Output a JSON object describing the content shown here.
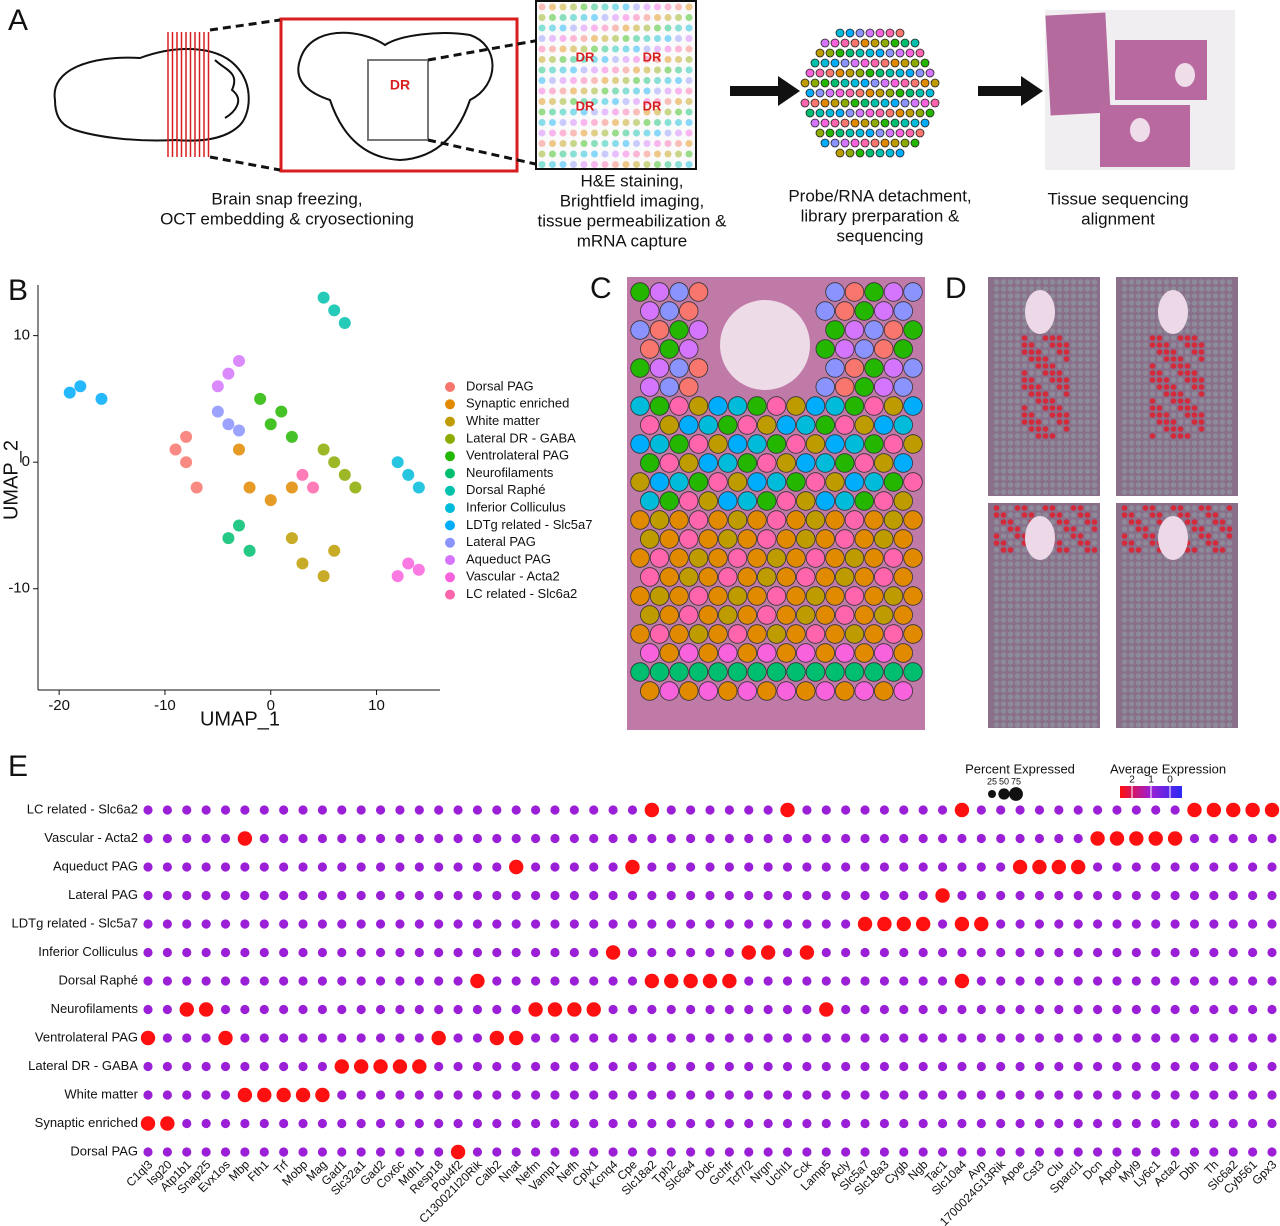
{
  "panel_labels": [
    "A",
    "B",
    "C",
    "D",
    "E"
  ],
  "panel_a": {
    "region_label": "DR",
    "steps": [
      [
        "Brain snap freezing,",
        "OCT embedding & cryosectioning"
      ],
      [
        "H&E staining,",
        "Brightfield imaging,",
        "tissue permeabilization &",
        "mRNA capture"
      ],
      [
        "Probe/RNA detachment,",
        "library prerparation &",
        "sequencing"
      ],
      [
        "Tissue sequencing",
        "alignment"
      ]
    ]
  },
  "chart_data": [
    {
      "type": "scatter",
      "xlabel": "UMAP_1",
      "ylabel": "UMAP_2",
      "xlim": [
        -22,
        16
      ],
      "ylim": [
        -18,
        14
      ],
      "xticks": [
        -20,
        -10,
        0,
        10
      ],
      "yticks": [
        -10,
        0,
        10
      ],
      "series": [
        {
          "name": "Dorsal PAG",
          "color": "#F8766D",
          "x": [
            -8,
            -9,
            -7,
            -8
          ],
          "y": [
            0,
            1,
            -2,
            2
          ]
        },
        {
          "name": "Synaptic enriched",
          "color": "#E18A00",
          "x": [
            -2,
            0,
            2,
            -3
          ],
          "y": [
            -2,
            -3,
            -2,
            1
          ]
        },
        {
          "name": "White matter",
          "color": "#BE9C00",
          "x": [
            3,
            5,
            2,
            6
          ],
          "y": [
            -8,
            -9,
            -6,
            -7
          ]
        },
        {
          "name": "Lateral DR - GABA",
          "color": "#8CAB00",
          "x": [
            6,
            7,
            5,
            8
          ],
          "y": [
            0,
            -1,
            1,
            -2
          ]
        },
        {
          "name": "Ventrolateral PAG",
          "color": "#24B700",
          "x": [
            0,
            1,
            2,
            -1
          ],
          "y": [
            3,
            4,
            2,
            5
          ]
        },
        {
          "name": "Neurofilaments",
          "color": "#00BE70",
          "x": [
            -3,
            -2,
            -4
          ],
          "y": [
            -5,
            -7,
            -6
          ]
        },
        {
          "name": "Dorsal Raphé",
          "color": "#00C1AB",
          "x": [
            6,
            7,
            5
          ],
          "y": [
            12,
            11,
            13
          ]
        },
        {
          "name": "Inferior Colliculus",
          "color": "#00BBDA",
          "x": [
            13,
            14,
            12
          ],
          "y": [
            -1,
            -2,
            0
          ]
        },
        {
          "name": "LDTg related - Slc5a7",
          "color": "#00ACFC",
          "x": [
            -18,
            -16,
            -19
          ],
          "y": [
            6,
            5,
            5.5
          ]
        },
        {
          "name": "Lateral PAG",
          "color": "#8B93FF",
          "x": [
            -4,
            -5,
            -3
          ],
          "y": [
            3,
            4,
            2.5
          ]
        },
        {
          "name": "Aqueduct PAG",
          "color": "#D575FE",
          "x": [
            -3,
            -5,
            -4
          ],
          "y": [
            8,
            6,
            7
          ]
        },
        {
          "name": "Vascular - Acta2",
          "color": "#F962DD",
          "x": [
            13,
            12,
            14
          ],
          "y": [
            -8,
            -9,
            -8.5
          ]
        },
        {
          "name": "LC related - Slc6a2",
          "color": "#FF65AC",
          "x": [
            3,
            4
          ],
          "y": [
            -1,
            -2
          ]
        }
      ]
    },
    {
      "type": "dotplot",
      "categories": [
        "C1ql3",
        "Isg20",
        "Atp1b1",
        "Snap25",
        "Evx1os",
        "Mbp",
        "Fth1",
        "Trf",
        "Mobp",
        "Mag",
        "Gad1",
        "Slc32a1",
        "Gad2",
        "Cox6c",
        "Mdh1",
        "Resp18",
        "Pou4f2",
        "C130021I20Rik",
        "Calb2",
        "Nnat",
        "Nefm",
        "Vamp1",
        "Nefh",
        "Cplx1",
        "Kcnq4",
        "Cpe",
        "Slc18a2",
        "Tph2",
        "Slc6a4",
        "Ddc",
        "Gchfr",
        "Tcf7l2",
        "Nrgn",
        "Uchl1",
        "Cck",
        "Lamp5",
        "Acly",
        "Slc5a7",
        "Slc18a3",
        "Cygb",
        "Ngb",
        "Tac1",
        "Slc10a4",
        "Avp",
        "1700024G13Rik",
        "Apoe",
        "Cst3",
        "Clu",
        "Sparcl1",
        "Dcn",
        "Apod",
        "Myl9",
        "Ly6c1",
        "Acta2",
        "Dbh",
        "Th",
        "Slc6a2",
        "Cyb561",
        "Gpx3"
      ],
      "colors": {
        "high": "#ff1010",
        "mid": "#9a1fd6",
        "low": "#2a2af5"
      },
      "size_legend": {
        "title": "Percent Expressed",
        "ticks": [
          25,
          50,
          75
        ]
      },
      "color_legend": {
        "title": "Average Expression",
        "ticks": [
          2,
          1,
          0
        ]
      },
      "series": [
        {
          "name": "LC related - Slc6a2",
          "values": [
            1,
            1,
            1,
            1,
            1,
            1,
            1,
            1,
            1,
            1,
            1,
            1,
            1,
            1,
            1,
            1,
            1,
            1,
            1,
            1,
            1,
            1,
            1,
            1,
            1,
            1,
            2,
            1,
            1,
            1,
            1,
            1,
            1,
            2,
            1,
            1,
            1,
            1,
            1,
            1,
            1,
            1,
            2,
            1,
            1,
            1,
            1,
            1,
            1,
            1,
            1,
            1,
            1,
            1,
            2,
            2,
            2,
            2,
            2
          ]
        },
        {
          "name": "Vascular - Acta2",
          "values": [
            1,
            1,
            1,
            1,
            1,
            2,
            1,
            1,
            1,
            1,
            1,
            1,
            1,
            1,
            1,
            1,
            1,
            1,
            1,
            1,
            1,
            1,
            1,
            1,
            1,
            1,
            1,
            1,
            1,
            1,
            1,
            1,
            1,
            1,
            1,
            1,
            1,
            1,
            1,
            1,
            1,
            1,
            1,
            1,
            1,
            1,
            1,
            1,
            1,
            2,
            2,
            2,
            2,
            2,
            1,
            1,
            1,
            1,
            1
          ]
        },
        {
          "name": "Aqueduct PAG",
          "values": [
            1,
            1,
            1,
            1,
            1,
            1,
            1,
            1,
            1,
            1,
            1,
            1,
            1,
            1,
            1,
            1,
            1,
            1,
            1,
            2,
            1,
            1,
            1,
            1,
            1,
            2,
            1,
            1,
            1,
            1,
            1,
            1,
            1,
            1,
            1,
            1,
            1,
            1,
            1,
            1,
            1,
            1,
            1,
            1,
            1,
            2,
            2,
            2,
            2,
            1,
            1,
            1,
            1,
            1,
            1,
            1,
            1,
            1,
            1
          ]
        },
        {
          "name": "Lateral PAG",
          "values": [
            1,
            1,
            1,
            1,
            1,
            1,
            1,
            1,
            1,
            1,
            1,
            1,
            1,
            1,
            1,
            1,
            1,
            1,
            1,
            1,
            1,
            1,
            1,
            1,
            1,
            1,
            1,
            1,
            1,
            1,
            1,
            1,
            1,
            1,
            1,
            1,
            1,
            1,
            1,
            1,
            1,
            2,
            1,
            1,
            1,
            1,
            1,
            1,
            1,
            1,
            1,
            1,
            1,
            1,
            1,
            1,
            1,
            1,
            1
          ]
        },
        {
          "name": "LDTg related - Slc5a7",
          "values": [
            1,
            1,
            1,
            1,
            1,
            1,
            1,
            1,
            1,
            1,
            1,
            1,
            1,
            1,
            1,
            1,
            1,
            1,
            1,
            1,
            1,
            1,
            1,
            1,
            1,
            1,
            1,
            1,
            1,
            1,
            1,
            1,
            1,
            1,
            1,
            1,
            1,
            2,
            2,
            2,
            2,
            1,
            2,
            2,
            1,
            1,
            1,
            1,
            1,
            1,
            1,
            1,
            1,
            1,
            1,
            1,
            1,
            1,
            1
          ]
        },
        {
          "name": "Inferior Colliculus",
          "values": [
            1,
            1,
            1,
            1,
            1,
            1,
            1,
            1,
            1,
            1,
            1,
            1,
            1,
            1,
            1,
            1,
            1,
            1,
            1,
            1,
            1,
            1,
            1,
            1,
            2,
            1,
            1,
            1,
            1,
            1,
            1,
            2,
            2,
            1,
            2,
            1,
            1,
            1,
            1,
            1,
            1,
            1,
            1,
            1,
            1,
            1,
            1,
            1,
            1,
            1,
            1,
            1,
            1,
            1,
            1,
            1,
            1,
            1,
            1
          ]
        },
        {
          "name": "Dorsal Raphé",
          "values": [
            1,
            1,
            1,
            1,
            1,
            1,
            1,
            1,
            1,
            1,
            1,
            1,
            1,
            1,
            1,
            1,
            1,
            2,
            1,
            1,
            1,
            1,
            1,
            1,
            1,
            1,
            2,
            2,
            2,
            2,
            2,
            1,
            1,
            1,
            1,
            1,
            1,
            1,
            1,
            1,
            1,
            1,
            2,
            1,
            1,
            1,
            1,
            1,
            1,
            1,
            1,
            1,
            1,
            1,
            1,
            1,
            1,
            1,
            1
          ]
        },
        {
          "name": "Neurofilaments",
          "values": [
            1,
            1,
            2,
            2,
            1,
            1,
            1,
            1,
            1,
            1,
            1,
            1,
            1,
            1,
            1,
            1,
            1,
            1,
            1,
            1,
            2,
            2,
            2,
            2,
            1,
            1,
            1,
            1,
            1,
            1,
            1,
            1,
            1,
            1,
            1,
            2,
            1,
            1,
            1,
            1,
            1,
            1,
            1,
            1,
            1,
            1,
            1,
            1,
            1,
            1,
            1,
            1,
            1,
            1,
            1,
            1,
            1,
            1,
            1
          ]
        },
        {
          "name": "Ventrolateral PAG",
          "values": [
            2,
            1,
            1,
            1,
            2,
            1,
            1,
            1,
            1,
            1,
            1,
            1,
            1,
            1,
            1,
            2,
            1,
            1,
            2,
            2,
            1,
            1,
            1,
            1,
            1,
            1,
            1,
            1,
            1,
            1,
            1,
            1,
            1,
            1,
            1,
            1,
            1,
            1,
            1,
            1,
            1,
            1,
            1,
            1,
            1,
            1,
            1,
            1,
            1,
            1,
            1,
            1,
            1,
            1,
            1,
            1,
            1,
            1,
            1
          ]
        },
        {
          "name": "Lateral DR - GABA",
          "values": [
            1,
            1,
            1,
            1,
            1,
            1,
            1,
            1,
            1,
            1,
            2,
            2,
            2,
            2,
            2,
            1,
            1,
            1,
            1,
            1,
            1,
            1,
            1,
            1,
            1,
            1,
            1,
            1,
            1,
            1,
            1,
            1,
            1,
            1,
            1,
            1,
            1,
            1,
            1,
            1,
            1,
            1,
            1,
            1,
            1,
            1,
            1,
            1,
            1,
            1,
            1,
            1,
            1,
            1,
            1,
            1,
            1,
            1,
            1
          ]
        },
        {
          "name": "White matter",
          "values": [
            1,
            1,
            1,
            1,
            1,
            2,
            2,
            2,
            2,
            2,
            1,
            1,
            1,
            1,
            1,
            1,
            1,
            1,
            1,
            1,
            1,
            1,
            1,
            1,
            1,
            1,
            1,
            1,
            1,
            1,
            1,
            1,
            1,
            1,
            1,
            1,
            1,
            1,
            1,
            1,
            1,
            1,
            1,
            1,
            1,
            1,
            1,
            1,
            1,
            1,
            1,
            1,
            1,
            1,
            1,
            1,
            1,
            1,
            1
          ]
        },
        {
          "name": "Synaptic enriched",
          "values": [
            2,
            2,
            1,
            1,
            1,
            1,
            1,
            1,
            1,
            1,
            1,
            1,
            1,
            1,
            1,
            1,
            1,
            1,
            1,
            1,
            1,
            1,
            1,
            1,
            1,
            1,
            1,
            1,
            1,
            1,
            1,
            1,
            1,
            1,
            1,
            1,
            1,
            1,
            1,
            1,
            1,
            1,
            1,
            1,
            1,
            1,
            1,
            1,
            1,
            1,
            1,
            1,
            1,
            1,
            1,
            1,
            1,
            1,
            1
          ]
        },
        {
          "name": "Dorsal PAG",
          "values": [
            1,
            1,
            1,
            1,
            1,
            1,
            1,
            1,
            1,
            1,
            1,
            1,
            1,
            1,
            1,
            1,
            2,
            1,
            1,
            1,
            1,
            1,
            1,
            1,
            1,
            1,
            1,
            1,
            1,
            1,
            1,
            1,
            1,
            1,
            1,
            1,
            1,
            1,
            1,
            1,
            1,
            1,
            1,
            1,
            1,
            1,
            1,
            1,
            1,
            1,
            1,
            1,
            1,
            1,
            1,
            1,
            1,
            1,
            1
          ]
        }
      ]
    }
  ]
}
